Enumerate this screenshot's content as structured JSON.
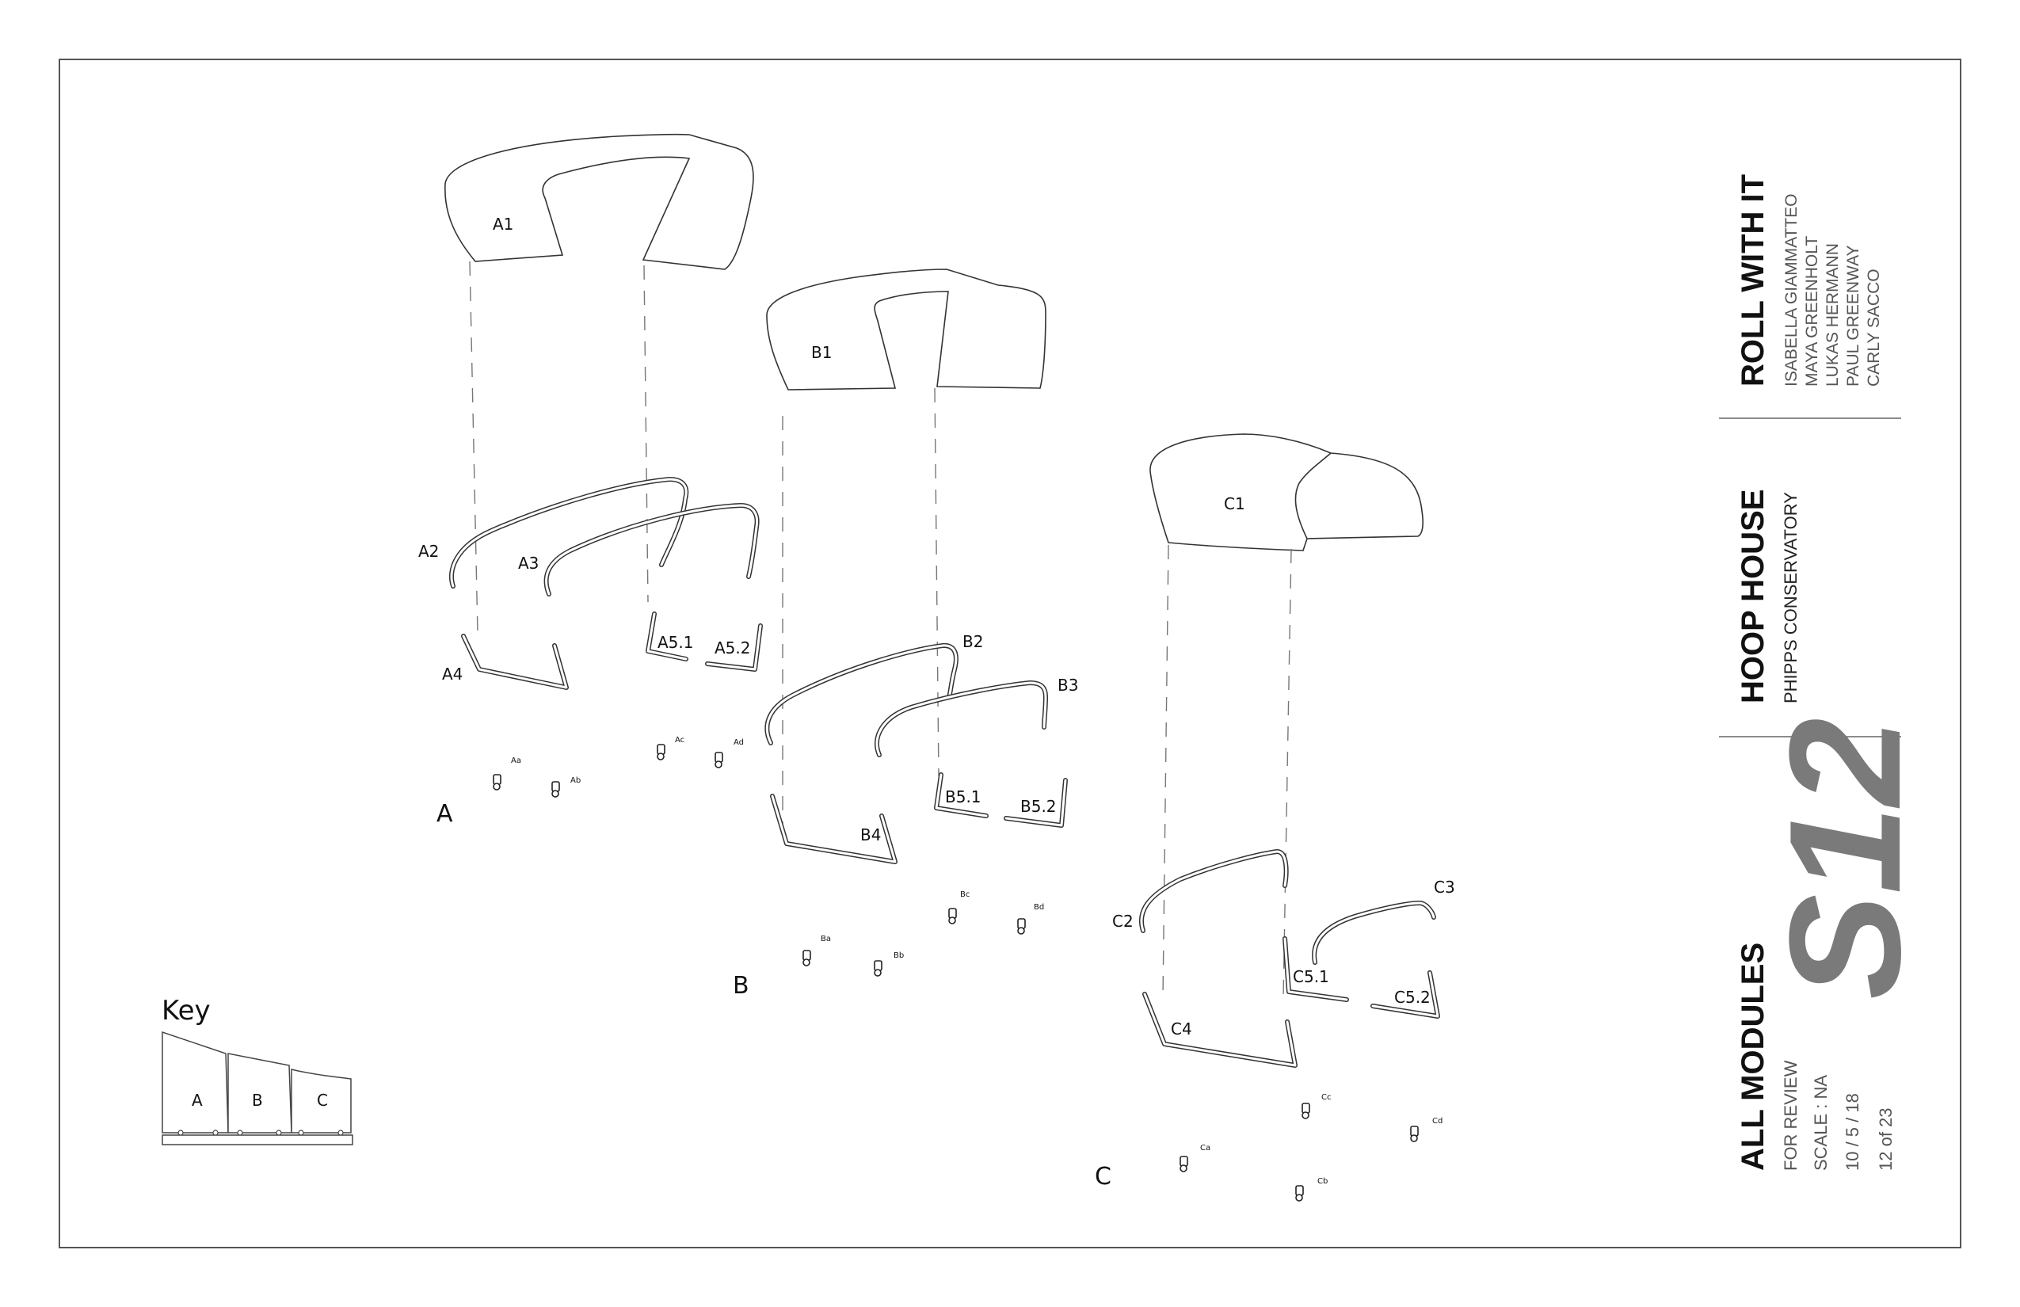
{
  "title_block": {
    "project_title": "ROLL WITH IT",
    "team": [
      "ISABELLA GIAMMATTEO",
      "MAYA GREENHOLT",
      "LUKAS HERMANN",
      "PAUL GREENWAY",
      "CARLY SACCO"
    ],
    "subject_title": "HOOP HOUSE",
    "subject_subtitle": "PHIPPS CONSERVATORY",
    "sheet_number": "S12",
    "sheet_title": "ALL MODULES",
    "sheet_info": [
      "FOR REVIEW",
      "SCALE : NA",
      "10 / 5 / 18",
      "12 of 23"
    ]
  },
  "modules": {
    "A": {
      "group_label": "A",
      "parts": {
        "cover": "A1",
        "hoop_outer": "A2",
        "hoop_inner": "A3",
        "base": "A4",
        "side_1": "A5.1",
        "side_2": "A5.2"
      },
      "casters": [
        "Aa",
        "Ab",
        "Ac",
        "Ad"
      ]
    },
    "B": {
      "group_label": "B",
      "parts": {
        "cover": "B1",
        "hoop_outer": "B2",
        "hoop_inner": "B3",
        "base": "B4",
        "side_1": "B5.1",
        "side_2": "B5.2"
      },
      "casters": [
        "Ba",
        "Bb",
        "Bc",
        "Bd"
      ]
    },
    "C": {
      "group_label": "C",
      "parts": {
        "cover": "C1",
        "hoop_outer": "C2",
        "hoop_inner": "C3",
        "base": "C4",
        "side_1": "C5.1",
        "side_2": "C5.2"
      },
      "casters": [
        "Ca",
        "Cb",
        "Cc",
        "Cd"
      ]
    }
  },
  "key": {
    "title": "Key",
    "items": [
      "A",
      "B",
      "C"
    ]
  }
}
